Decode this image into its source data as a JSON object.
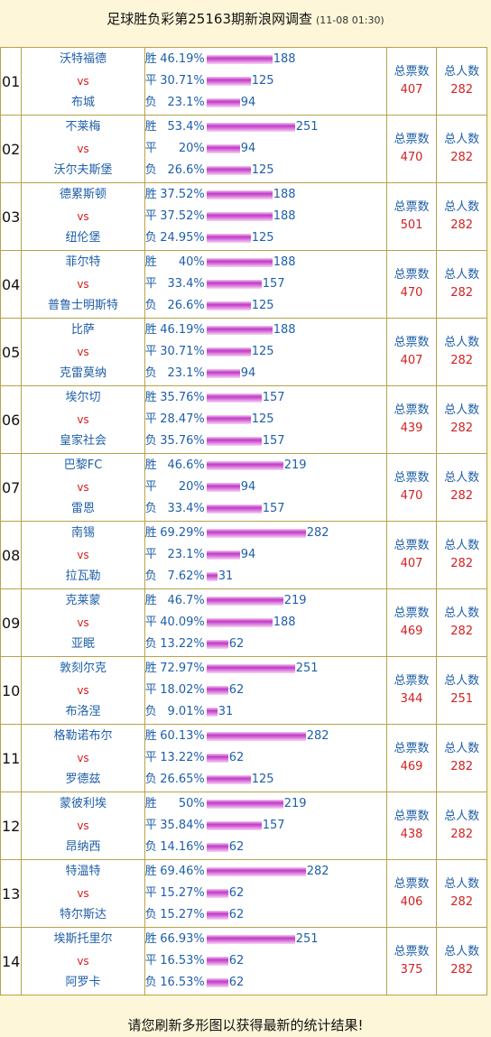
{
  "header": {
    "title": "足球胜负彩第25163期新浪网调查",
    "time": "(11-08 01:30)"
  },
  "labels": {
    "vs": "vs",
    "win": "胜",
    "draw": "平",
    "lose": "负",
    "total_votes": "总票数",
    "total_people": "总人数"
  },
  "matches": [
    {
      "num": "01",
      "home": "沃特福德",
      "away": "布城",
      "win": {
        "pct": "46.19%",
        "count": 188
      },
      "draw": {
        "pct": "30.71%",
        "count": 125
      },
      "lose": {
        "pct": "23.1%",
        "count": 94
      },
      "total_votes": 407,
      "total_people": 282
    },
    {
      "num": "02",
      "home": "不莱梅",
      "away": "沃尔夫斯堡",
      "win": {
        "pct": "53.4%",
        "count": 251
      },
      "draw": {
        "pct": "20%",
        "count": 94
      },
      "lose": {
        "pct": "26.6%",
        "count": 125
      },
      "total_votes": 470,
      "total_people": 282
    },
    {
      "num": "03",
      "home": "德累斯顿",
      "away": "纽伦堡",
      "win": {
        "pct": "37.52%",
        "count": 188
      },
      "draw": {
        "pct": "37.52%",
        "count": 188
      },
      "lose": {
        "pct": "24.95%",
        "count": 125
      },
      "total_votes": 501,
      "total_people": 282
    },
    {
      "num": "04",
      "home": "菲尔特",
      "away": "普鲁士明斯特",
      "win": {
        "pct": "40%",
        "count": 188
      },
      "draw": {
        "pct": "33.4%",
        "count": 157
      },
      "lose": {
        "pct": "26.6%",
        "count": 125
      },
      "total_votes": 470,
      "total_people": 282
    },
    {
      "num": "05",
      "home": "比萨",
      "away": "克雷莫纳",
      "win": {
        "pct": "46.19%",
        "count": 188
      },
      "draw": {
        "pct": "30.71%",
        "count": 125
      },
      "lose": {
        "pct": "23.1%",
        "count": 94
      },
      "total_votes": 407,
      "total_people": 282
    },
    {
      "num": "06",
      "home": "埃尔切",
      "away": "皇家社会",
      "win": {
        "pct": "35.76%",
        "count": 157
      },
      "draw": {
        "pct": "28.47%",
        "count": 125
      },
      "lose": {
        "pct": "35.76%",
        "count": 157
      },
      "total_votes": 439,
      "total_people": 282
    },
    {
      "num": "07",
      "home": "巴黎FC",
      "away": "雷恩",
      "win": {
        "pct": "46.6%",
        "count": 219
      },
      "draw": {
        "pct": "20%",
        "count": 94
      },
      "lose": {
        "pct": "33.4%",
        "count": 157
      },
      "total_votes": 470,
      "total_people": 282
    },
    {
      "num": "08",
      "home": "南锡",
      "away": "拉瓦勒",
      "win": {
        "pct": "69.29%",
        "count": 282
      },
      "draw": {
        "pct": "23.1%",
        "count": 94
      },
      "lose": {
        "pct": "7.62%",
        "count": 31
      },
      "total_votes": 407,
      "total_people": 282
    },
    {
      "num": "09",
      "home": "克莱蒙",
      "away": "亚眠",
      "win": {
        "pct": "46.7%",
        "count": 219
      },
      "draw": {
        "pct": "40.09%",
        "count": 188
      },
      "lose": {
        "pct": "13.22%",
        "count": 62
      },
      "total_votes": 469,
      "total_people": 282
    },
    {
      "num": "10",
      "home": "敦刻尔克",
      "away": "布洛涅",
      "win": {
        "pct": "72.97%",
        "count": 251
      },
      "draw": {
        "pct": "18.02%",
        "count": 62
      },
      "lose": {
        "pct": "9.01%",
        "count": 31
      },
      "total_votes": 344,
      "total_people": 251
    },
    {
      "num": "11",
      "home": "格勒诺布尔",
      "away": "罗德兹",
      "win": {
        "pct": "60.13%",
        "count": 282
      },
      "draw": {
        "pct": "13.22%",
        "count": 62
      },
      "lose": {
        "pct": "26.65%",
        "count": 125
      },
      "total_votes": 469,
      "total_people": 282
    },
    {
      "num": "12",
      "home": "蒙彼利埃",
      "away": "昂纳西",
      "win": {
        "pct": "50%",
        "count": 219
      },
      "draw": {
        "pct": "35.84%",
        "count": 157
      },
      "lose": {
        "pct": "14.16%",
        "count": 62
      },
      "total_votes": 438,
      "total_people": 282
    },
    {
      "num": "13",
      "home": "特温特",
      "away": "特尔斯达",
      "win": {
        "pct": "69.46%",
        "count": 282
      },
      "draw": {
        "pct": "15.27%",
        "count": 62
      },
      "lose": {
        "pct": "15.27%",
        "count": 62
      },
      "total_votes": 406,
      "total_people": 282
    },
    {
      "num": "14",
      "home": "埃斯托里尔",
      "away": "阿罗卡",
      "win": {
        "pct": "66.93%",
        "count": 251
      },
      "draw": {
        "pct": "16.53%",
        "count": 62
      },
      "lose": {
        "pct": "16.53%",
        "count": 62
      },
      "total_votes": 375,
      "total_people": 282
    }
  ],
  "footer": {
    "note": "请您刷新多形图以获得最新的统计结果!"
  }
}
